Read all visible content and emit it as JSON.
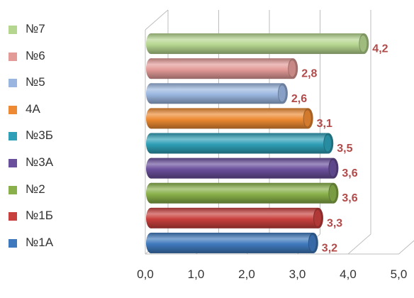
{
  "chart_data": {
    "type": "bar",
    "orientation": "horizontal",
    "style": "3d-cylinder",
    "categories": [
      "№7",
      "№6",
      "№5",
      "4А",
      "№3Б",
      "№3А",
      "№2",
      "№1Б",
      "№1А"
    ],
    "values": [
      4.2,
      2.8,
      2.6,
      3.1,
      3.5,
      3.6,
      3.6,
      3.3,
      3.2
    ],
    "data_labels": [
      "4,2",
      "2,8",
      "2,6",
      "3,1",
      "3,5",
      "3,6",
      "3,6",
      "3,3",
      "3,2"
    ],
    "colors": [
      "#b5d68f",
      "#e39b98",
      "#9ab6e0",
      "#ed8a33",
      "#2e9fb6",
      "#6a4f9c",
      "#89b04a",
      "#c8403d",
      "#3f79bd"
    ],
    "xlim": [
      0,
      5
    ],
    "xticks": [
      "0,0",
      "1,0",
      "2,0",
      "3,0",
      "4,0",
      "5,0"
    ],
    "grid": true,
    "legend_position": "left",
    "label_color": "#b24a4a",
    "title": "",
    "xlabel": "",
    "ylabel": ""
  },
  "legend": {
    "items": [
      {
        "label": "№7",
        "color": "#b5d68f"
      },
      {
        "label": "№6",
        "color": "#e39b98"
      },
      {
        "label": "№5",
        "color": "#9ab6e0"
      },
      {
        "label": "4А",
        "color": "#ed8a33"
      },
      {
        "label": "№3Б",
        "color": "#2e9fb6"
      },
      {
        "label": "№3А",
        "color": "#6a4f9c"
      },
      {
        "label": "№2",
        "color": "#89b04a"
      },
      {
        "label": "№1Б",
        "color": "#c8403d"
      },
      {
        "label": "№1А",
        "color": "#3f79bd"
      }
    ]
  }
}
